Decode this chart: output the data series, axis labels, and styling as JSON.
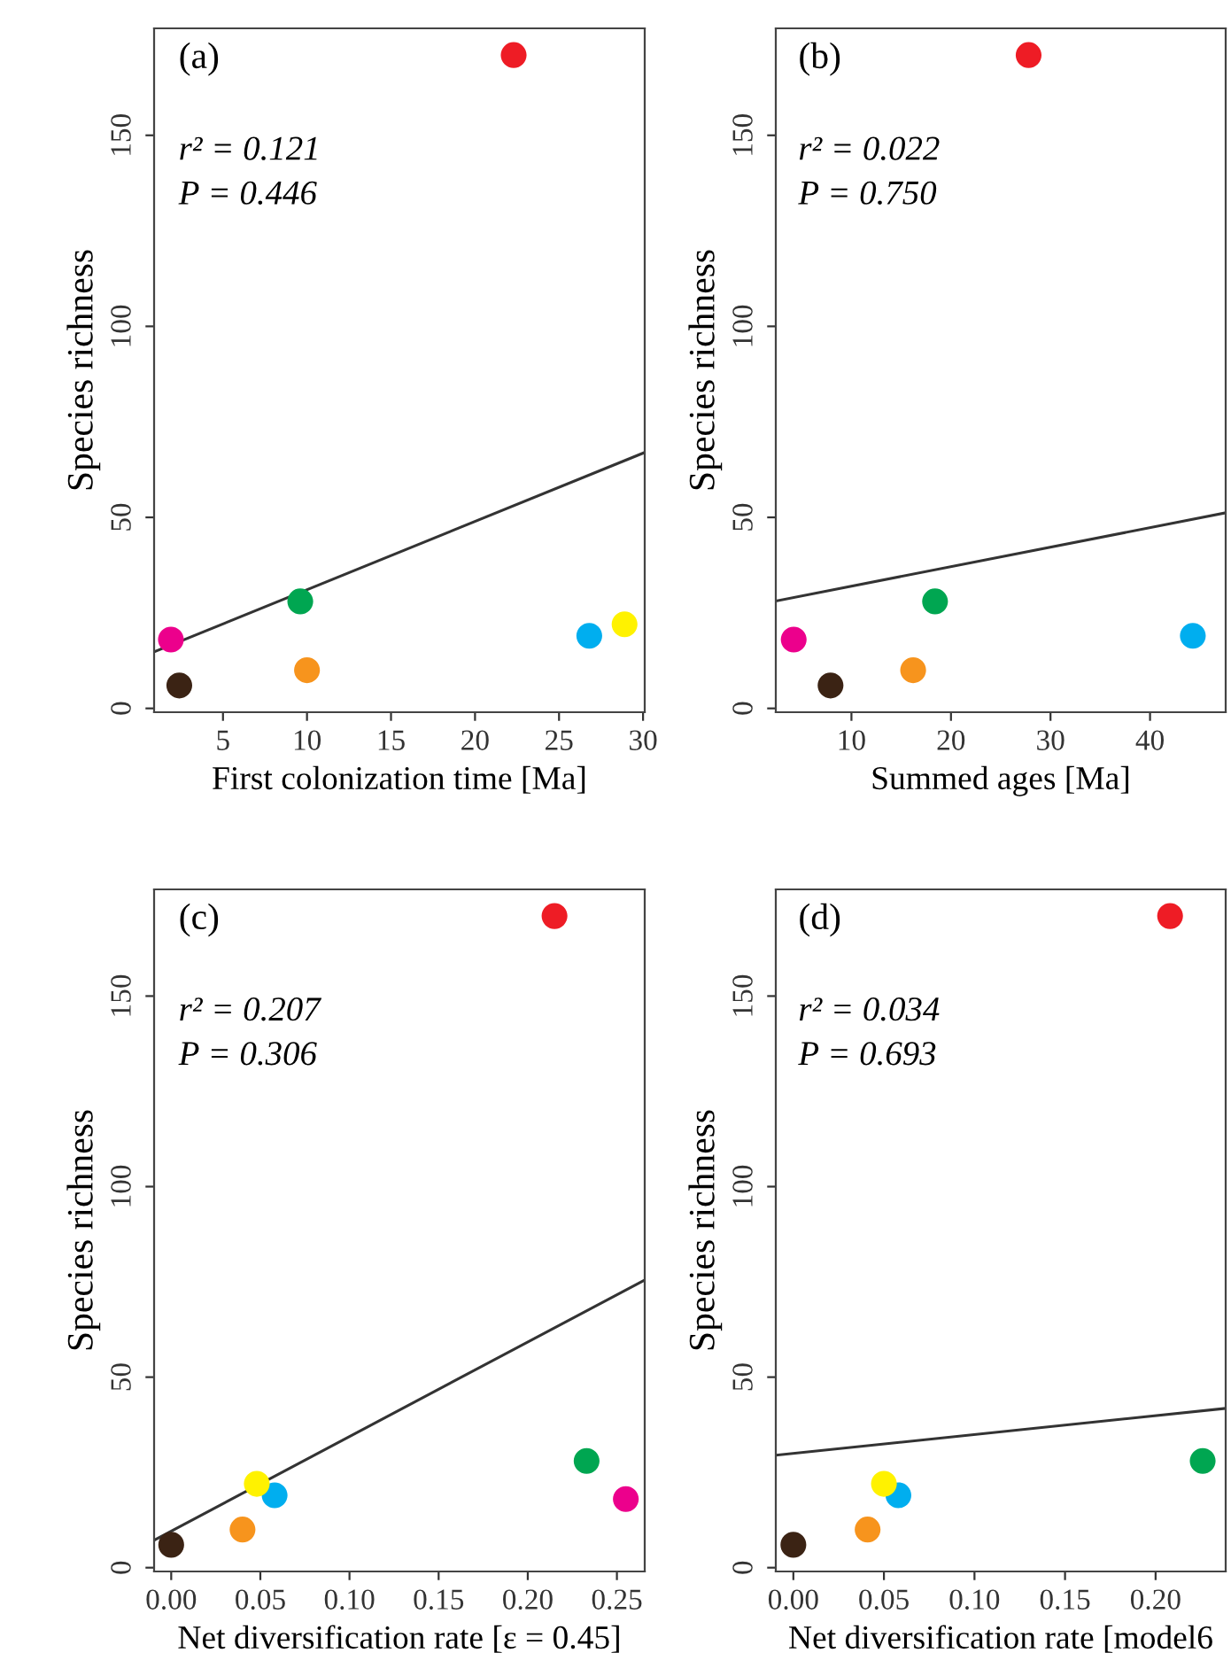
{
  "chart_data": [
    {
      "type": "scatter",
      "xlabel": "First colonization time [Ma]",
      "ylabel": "Species richness",
      "xlim": [
        0.9,
        30.1
      ],
      "xticks": [
        5,
        10,
        15,
        20,
        25,
        30
      ],
      "ylim": [
        -1,
        178
      ],
      "yticks": [
        0,
        50,
        100,
        150
      ],
      "annotations": [
        "(a)",
        "r² = 0.121",
        "P = 0.446"
      ],
      "series": [
        {
          "type": "scatter",
          "marker": "circle",
          "x": [
            1.9,
            2.4,
            9.6,
            10.0,
            22.3,
            26.8,
            28.9
          ],
          "values": [
            18,
            6,
            28,
            10,
            171,
            19,
            22
          ],
          "colors": [
            "#ec008c",
            "#3b2314",
            "#00a651",
            "#f7941d",
            "#ee1c25",
            "#00aeef",
            "#fff200"
          ]
        },
        {
          "type": "line",
          "line_style": "solid",
          "x": [
            0.9,
            30.1
          ],
          "values": [
            14.8,
            67.0
          ],
          "color": "#333333"
        }
      ]
    },
    {
      "type": "scatter",
      "xlabel": "Summed ages [Ma]",
      "ylabel": "Species richness",
      "xlim": [
        2.4,
        47.6
      ],
      "xticks": [
        10,
        20,
        30,
        40
      ],
      "ylim": [
        -1,
        178
      ],
      "yticks": [
        0,
        50,
        100,
        150
      ],
      "annotations": [
        "(b)",
        "r² = 0.022",
        "P = 0.750"
      ],
      "series": [
        {
          "type": "scatter",
          "marker": "circle",
          "x": [
            4.2,
            7.9,
            18.4,
            16.2,
            27.8,
            44.3
          ],
          "values": [
            18,
            6,
            28,
            10,
            171,
            19
          ],
          "colors": [
            "#ec008c",
            "#3b2314",
            "#00a651",
            "#f7941d",
            "#ee1c25",
            "#00aeef"
          ]
        },
        {
          "type": "line",
          "line_style": "solid",
          "x": [
            2.4,
            47.6
          ],
          "values": [
            28.1,
            51.2
          ],
          "color": "#333333"
        }
      ]
    },
    {
      "type": "scatter",
      "xlabel": "Net diversification rate [ε = 0.45]",
      "ylabel": "Species richness",
      "xlim": [
        -0.0096,
        0.2656
      ],
      "xticks": [
        {
          "value": 0,
          "label": "0.00"
        },
        {
          "value": 0.05,
          "label": "0.05"
        },
        {
          "value": 0.1,
          "label": "0.10"
        },
        {
          "value": 0.15,
          "label": "0.15"
        },
        {
          "value": 0.2,
          "label": "0.20"
        },
        {
          "value": 0.25,
          "label": "0.25"
        }
      ],
      "ylim": [
        -1,
        178
      ],
      "yticks": [
        0,
        50,
        100,
        150
      ],
      "annotations": [
        "(c)",
        "r² = 0.207",
        "P = 0.306"
      ],
      "series": [
        {
          "type": "scatter",
          "marker": "circle",
          "x": [
            0.255,
            0.0,
            0.233,
            0.04,
            0.215,
            0.058,
            0.048
          ],
          "values": [
            18,
            6,
            28,
            10,
            171,
            19,
            22
          ],
          "colors": [
            "#ec008c",
            "#3b2314",
            "#00a651",
            "#f7941d",
            "#ee1c25",
            "#00aeef",
            "#fff200"
          ]
        },
        {
          "type": "line",
          "line_style": "solid",
          "x": [
            -0.0096,
            0.2656
          ],
          "values": [
            7.2,
            75.5
          ],
          "color": "#333333"
        }
      ]
    },
    {
      "type": "scatter",
      "xlabel": "Net diversification rate [model6",
      "ylabel": "Species richness",
      "xlim": [
        -0.0097,
        0.2387
      ],
      "xticks": [
        {
          "value": 0,
          "label": "0.00"
        },
        {
          "value": 0.05,
          "label": "0.05"
        },
        {
          "value": 0.1,
          "label": "0.10"
        },
        {
          "value": 0.15,
          "label": "0.15"
        },
        {
          "value": 0.2,
          "label": "0.20"
        }
      ],
      "ylim": [
        -1,
        178
      ],
      "yticks": [
        0,
        50,
        100,
        150
      ],
      "annotations": [
        "(d)",
        "r² = 0.034",
        "P = 0.693"
      ],
      "series": [
        {
          "type": "scatter",
          "marker": "circle",
          "x": [
            0.0,
            0.226,
            0.041,
            0.208,
            0.058,
            0.05
          ],
          "values": [
            6,
            28,
            10,
            171,
            19,
            22
          ],
          "colors": [
            "#3b2314",
            "#00a651",
            "#f7941d",
            "#ee1c25",
            "#00aeef",
            "#fff200"
          ]
        },
        {
          "type": "line",
          "line_style": "solid",
          "x": [
            -0.0097,
            0.2387
          ],
          "values": [
            29.5,
            41.8
          ],
          "color": "#333333"
        }
      ]
    }
  ]
}
